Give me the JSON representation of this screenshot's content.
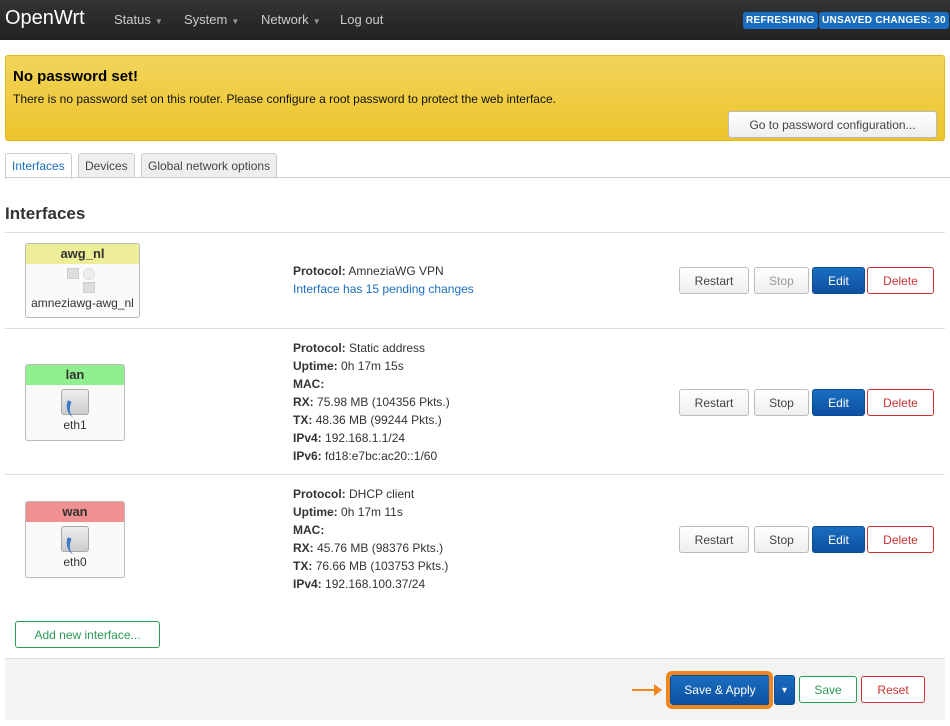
{
  "nav": {
    "brand": "OpenWrt",
    "menu": [
      "Status",
      "System",
      "Network",
      "Log out"
    ],
    "badges": [
      "REFRESHING",
      "UNSAVED CHANGES: 30"
    ]
  },
  "alert": {
    "title": "No password set!",
    "text": "There is no password set on this router. Please configure a root password to protect the web interface.",
    "button": "Go to password configuration..."
  },
  "tabs": [
    "Interfaces",
    "Devices",
    "Global network options"
  ],
  "heading": "Interfaces",
  "interfaces": [
    {
      "name": "awg_nl",
      "color": "#eeee99",
      "device": "amneziawg-awg_nl",
      "lines": [
        {
          "k": "Protocol:",
          "v": "AmneziaWG VPN"
        }
      ],
      "note": "Interface has 15 pending changes"
    },
    {
      "name": "lan",
      "color": "#90f090",
      "device": "eth1",
      "lines": [
        {
          "k": "Protocol:",
          "v": "Static address"
        },
        {
          "k": "Uptime:",
          "v": "0h 17m 15s"
        },
        {
          "k": "MAC:",
          "v": ""
        },
        {
          "k": "RX:",
          "v": "75.98 MB (104356 Pkts.)"
        },
        {
          "k": "TX:",
          "v": "48.36 MB (99244 Pkts.)"
        },
        {
          "k": "IPv4:",
          "v": "192.168.1.1/24"
        },
        {
          "k": "IPv6:",
          "v": "fd18:e7bc:ac20::1/60"
        }
      ]
    },
    {
      "name": "wan",
      "color": "#f09090",
      "device": "eth0",
      "lines": [
        {
          "k": "Protocol:",
          "v": "DHCP client"
        },
        {
          "k": "Uptime:",
          "v": "0h 17m 11s"
        },
        {
          "k": "MAC:",
          "v": ""
        },
        {
          "k": "RX:",
          "v": "45.76 MB (98376 Pkts.)"
        },
        {
          "k": "TX:",
          "v": "76.66 MB (103753 Pkts.)"
        },
        {
          "k": "IPv4:",
          "v": "192.168.100.37/24"
        }
      ]
    }
  ],
  "row_buttons": {
    "restart": "Restart",
    "stop": "Stop",
    "edit": "Edit",
    "delete": "Delete"
  },
  "add_button": "Add new interface...",
  "footer": {
    "save_apply": "Save & Apply",
    "dropdown": "▾",
    "save": "Save",
    "reset": "Reset"
  }
}
